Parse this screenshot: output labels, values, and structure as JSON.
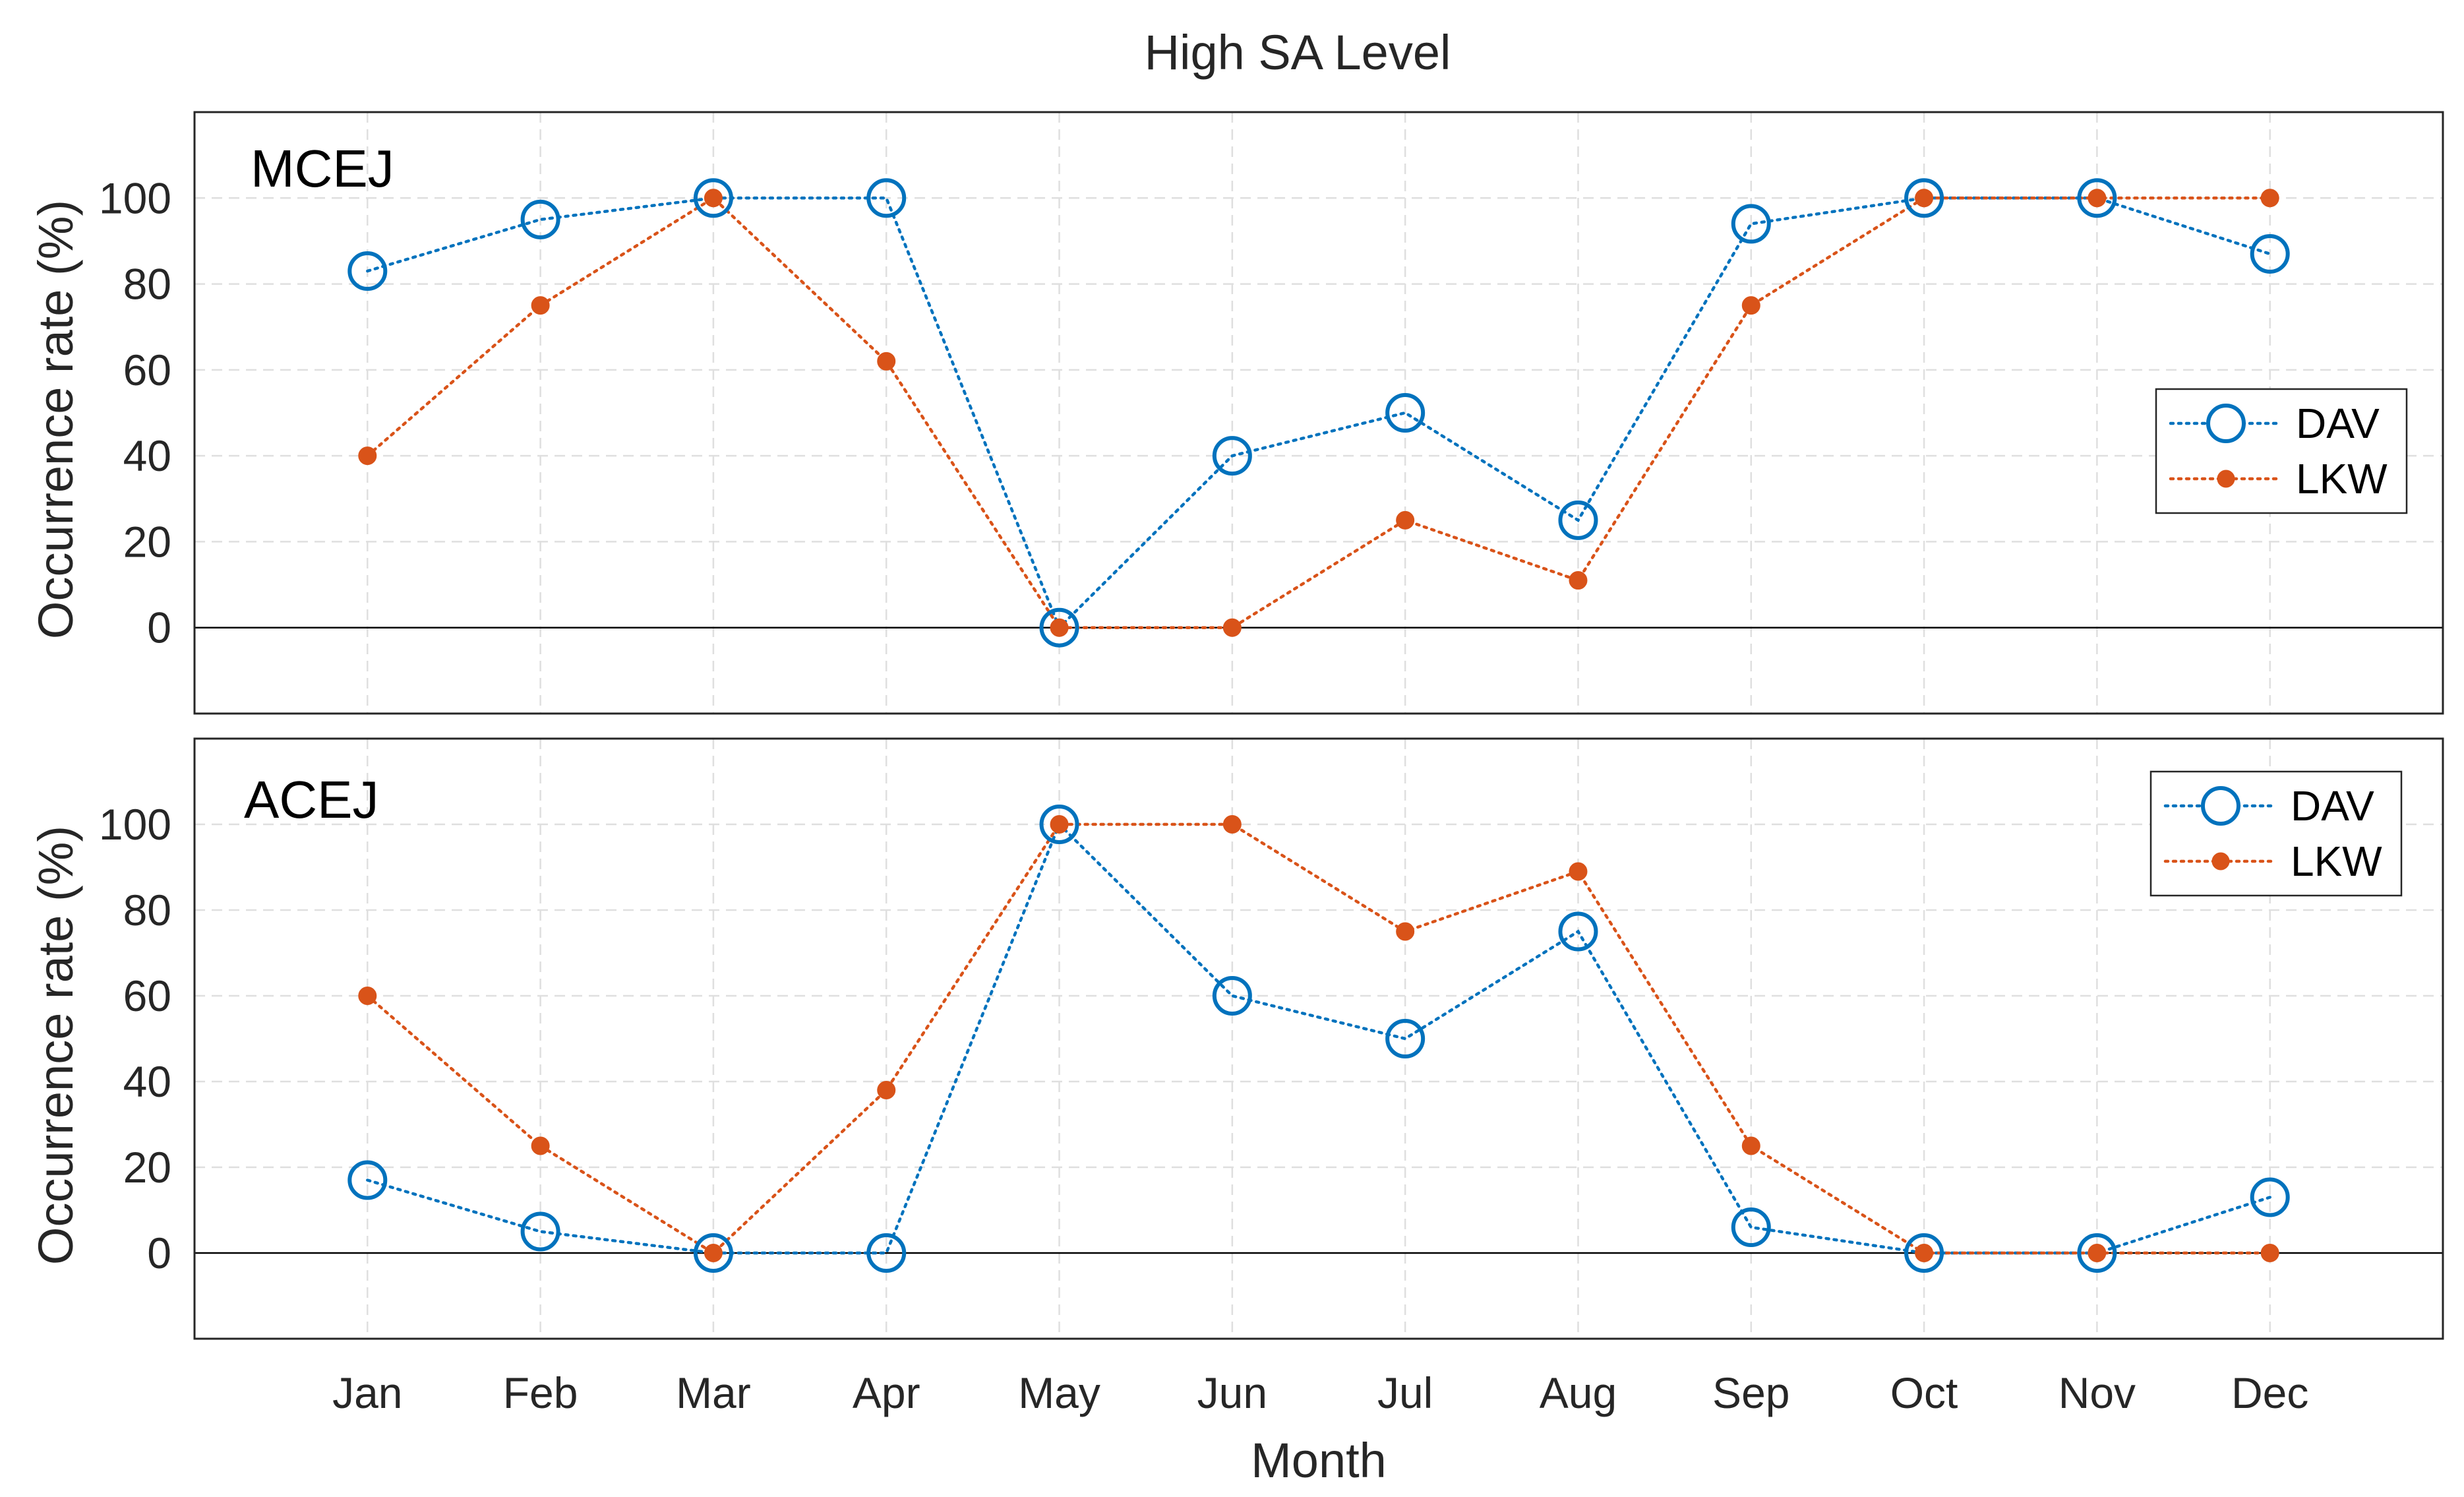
{
  "figure_title": "High SA Level",
  "colors": {
    "dav": "#0072BD",
    "lkw": "#D95319",
    "axes": "#262626",
    "grid": "#DFDFDF",
    "zero_line": "#000000"
  },
  "chart_data": [
    {
      "type": "line",
      "title": "High SA Level",
      "panel_label": "MCEJ",
      "xlabel": "",
      "ylabel": "Occurrence rate (%)",
      "categories": [
        "Jan",
        "Feb",
        "Mar",
        "Apr",
        "May",
        "Jun",
        "Jul",
        "Aug",
        "Sep",
        "Oct",
        "Nov",
        "Dec"
      ],
      "xlim": [
        0,
        13
      ],
      "ylim": [
        -20,
        120
      ],
      "yticks": [
        0,
        20,
        40,
        60,
        80,
        100
      ],
      "grid": true,
      "legend_position": "right",
      "series": [
        {
          "name": "DAV",
          "marker": "open-circle",
          "line": "dotted",
          "values": [
            83,
            95,
            100,
            100,
            0,
            40,
            50,
            25,
            94,
            100,
            100,
            87
          ]
        },
        {
          "name": "LKW",
          "marker": "filled-dot",
          "line": "dotted",
          "values": [
            40,
            75,
            100,
            62,
            0,
            0,
            25,
            11,
            75,
            100,
            100,
            100
          ]
        }
      ]
    },
    {
      "type": "line",
      "title": "",
      "panel_label": "ACEJ",
      "xlabel": "Month",
      "ylabel": "Occurrence rate (%)",
      "categories": [
        "Jan",
        "Feb",
        "Mar",
        "Apr",
        "May",
        "Jun",
        "Jul",
        "Aug",
        "Sep",
        "Oct",
        "Nov",
        "Dec"
      ],
      "xlim": [
        0,
        13
      ],
      "ylim": [
        -20,
        120
      ],
      "yticks": [
        0,
        20,
        40,
        60,
        80,
        100
      ],
      "grid": true,
      "legend_position": "top-right",
      "series": [
        {
          "name": "DAV",
          "marker": "open-circle",
          "line": "dotted",
          "values": [
            17,
            5,
            0,
            0,
            100,
            60,
            50,
            75,
            6,
            0,
            0,
            13
          ]
        },
        {
          "name": "LKW",
          "marker": "filled-dot",
          "line": "dotted",
          "values": [
            60,
            25,
            0,
            38,
            100,
            100,
            75,
            89,
            25,
            0,
            0,
            0
          ]
        }
      ]
    }
  ]
}
